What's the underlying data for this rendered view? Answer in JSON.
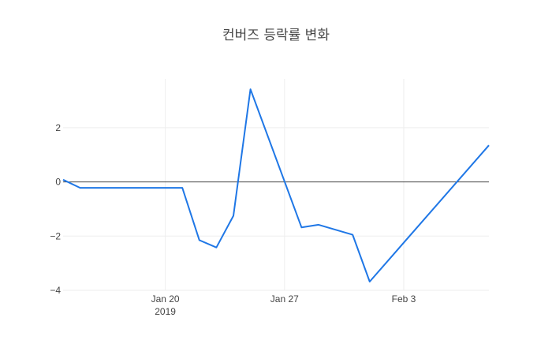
{
  "chart_data": {
    "type": "line",
    "title": "컨버즈 등락률 변화",
    "xlabel": "",
    "ylabel": "",
    "x_range": [
      "2019-01-14",
      "2019-02-08"
    ],
    "ylim": [
      -4,
      3.8
    ],
    "grid": true,
    "zero_line": true,
    "line_color": "#1f77e6",
    "x_ticks": [
      {
        "date": "2019-01-20",
        "label": "Jan 20",
        "sublabel": "2019"
      },
      {
        "date": "2019-01-27",
        "label": "Jan 27",
        "sublabel": ""
      },
      {
        "date": "2019-02-03",
        "label": "Feb 3",
        "sublabel": ""
      }
    ],
    "y_ticks": [
      {
        "value": 2,
        "label": "2"
      },
      {
        "value": 0,
        "label": "0"
      },
      {
        "value": -2,
        "label": "−2"
      },
      {
        "value": -4,
        "label": "−4"
      }
    ],
    "series": [
      {
        "x": [
          "2019-01-14",
          "2019-01-15",
          "2019-01-21",
          "2019-01-22",
          "2019-01-23",
          "2019-01-24",
          "2019-01-25",
          "2019-01-28",
          "2019-01-29",
          "2019-01-31",
          "2019-02-01",
          "2019-02-08"
        ],
        "values": [
          0.08,
          -0.22,
          -0.22,
          -2.15,
          -2.42,
          -1.25,
          3.42,
          -1.68,
          -1.58,
          -1.95,
          -3.68,
          1.35
        ]
      }
    ]
  }
}
